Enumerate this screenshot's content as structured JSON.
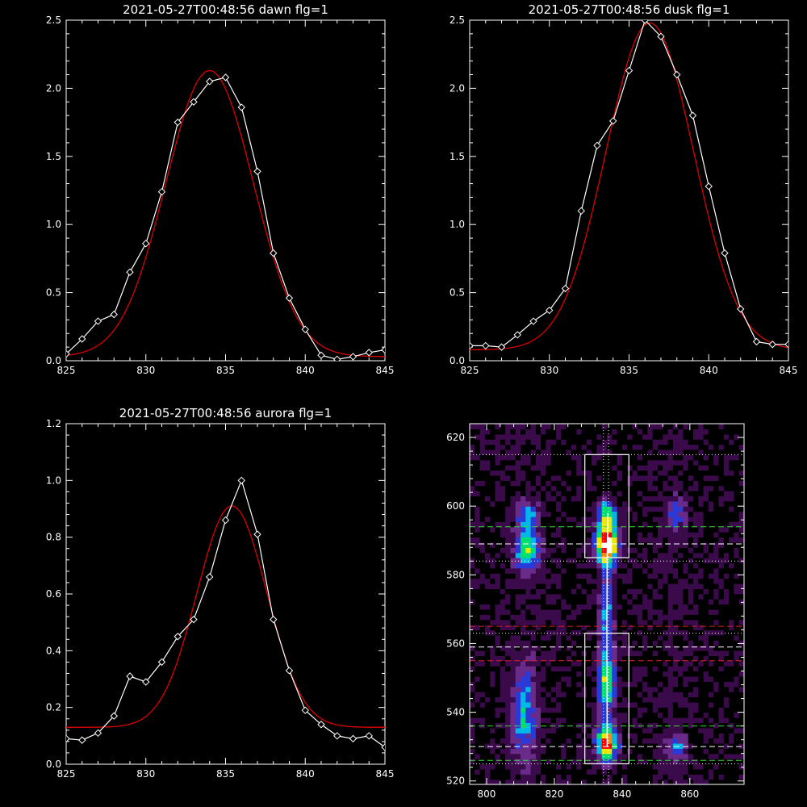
{
  "chart_data": [
    {
      "type": "line",
      "title": "2021-05-27T00:48:56 dawn flg=1",
      "xlim": [
        825,
        845
      ],
      "ylim": [
        0.0,
        2.5
      ],
      "xticks": [
        "825",
        "830",
        "835",
        "840",
        "845"
      ],
      "yticks": [
        "0.0",
        "0.5",
        "1.0",
        "1.5",
        "2.0",
        "2.5"
      ],
      "series": [
        {
          "role": "data",
          "color": "#ffffff",
          "marker": "diamond",
          "x": [
            825,
            826,
            827,
            828,
            829,
            830,
            831,
            832,
            833,
            834,
            835,
            836,
            837,
            838,
            839,
            840,
            841,
            842,
            843,
            844,
            845
          ],
          "y": [
            0.05,
            0.16,
            0.29,
            0.34,
            0.65,
            0.86,
            1.24,
            1.75,
            1.9,
            2.05,
            2.08,
            1.86,
            1.39,
            0.79,
            0.46,
            0.23,
            0.04,
            0.01,
            0.03,
            0.06,
            0.08
          ]
        },
        {
          "role": "fit",
          "color": "#dd0000",
          "gauss": {
            "amp": 2.1,
            "center": 834.0,
            "sigma": 2.75,
            "base": 0.03
          }
        }
      ]
    },
    {
      "type": "line",
      "title": "2021-05-27T00:48:56 dusk flg=1",
      "xlim": [
        825,
        845
      ],
      "ylim": [
        0.0,
        2.5
      ],
      "xticks": [
        "825",
        "830",
        "835",
        "840",
        "845"
      ],
      "yticks": [
        "0.0",
        "0.5",
        "1.0",
        "1.5",
        "2.0",
        "2.5"
      ],
      "series": [
        {
          "role": "data",
          "color": "#ffffff",
          "marker": "diamond",
          "x": [
            825,
            826,
            827,
            828,
            829,
            830,
            831,
            832,
            833,
            834,
            835,
            836,
            837,
            838,
            839,
            840,
            841,
            842,
            843,
            844,
            845
          ],
          "y": [
            0.11,
            0.11,
            0.1,
            0.19,
            0.29,
            0.37,
            0.53,
            1.1,
            1.58,
            1.76,
            2.13,
            2.5,
            2.38,
            2.1,
            1.8,
            1.28,
            0.79,
            0.38,
            0.14,
            0.12,
            0.12
          ]
        },
        {
          "role": "fit",
          "color": "#dd0000",
          "gauss": {
            "amp": 2.4,
            "center": 836.3,
            "sigma": 2.75,
            "base": 0.08
          }
        }
      ]
    },
    {
      "type": "line",
      "title": "2021-05-27T00:48:56 aurora flg=1",
      "xlim": [
        825,
        845
      ],
      "ylim": [
        0.0,
        1.2
      ],
      "xticks": [
        "825",
        "830",
        "835",
        "840",
        "845"
      ],
      "yticks": [
        "0.0",
        "0.2",
        "0.4",
        "0.6",
        "0.8",
        "1.0",
        "1.2"
      ],
      "series": [
        {
          "role": "data",
          "color": "#ffffff",
          "marker": "diamond",
          "x": [
            825,
            826,
            827,
            828,
            829,
            830,
            831,
            832,
            833,
            834,
            835,
            836,
            837,
            838,
            839,
            840,
            841,
            842,
            843,
            844,
            845
          ],
          "y": [
            0.09,
            0.085,
            0.11,
            0.17,
            0.31,
            0.29,
            0.36,
            0.45,
            0.51,
            0.66,
            0.86,
            1.0,
            0.81,
            0.51,
            0.33,
            0.19,
            0.14,
            0.1,
            0.09,
            0.1,
            0.06
          ]
        },
        {
          "role": "fit",
          "color": "#dd0000",
          "gauss": {
            "amp": 0.78,
            "center": 835.4,
            "sigma": 2.2,
            "base": 0.13
          }
        }
      ]
    },
    {
      "type": "heatmap",
      "title": "",
      "xlim": [
        795,
        876
      ],
      "ylim": [
        519,
        624
      ],
      "xticks": [
        "800",
        "820",
        "840",
        "860"
      ],
      "yticks": [
        "520",
        "540",
        "560",
        "580",
        "600",
        "620"
      ],
      "colormap": [
        "#000000",
        "#3a0a4a",
        "#6a2a8a",
        "#2a3ad8",
        "#00b8e8",
        "#00e070",
        "#e8e800",
        "#ff8800",
        "#ff0000",
        "#ffffff"
      ],
      "sources": [
        {
          "x": 835.5,
          "y": 589,
          "sx": 2.2,
          "sy": 4.0,
          "amp": 1.0
        },
        {
          "x": 835.5,
          "y": 531,
          "sx": 2.2,
          "sy": 3.5,
          "amp": 0.85
        },
        {
          "x": 835.5,
          "y": 548,
          "sx": 2.0,
          "sy": 7.0,
          "amp": 0.55
        },
        {
          "x": 835.5,
          "y": 598,
          "sx": 2.0,
          "sy": 3.0,
          "amp": 0.5
        },
        {
          "x": 835.5,
          "y": 570,
          "sx": 1.5,
          "sy": 10.0,
          "amp": 0.4
        },
        {
          "x": 812,
          "y": 588,
          "sx": 2.5,
          "sy": 4.5,
          "amp": 0.55
        },
        {
          "x": 811,
          "y": 540,
          "sx": 2.5,
          "sy": 9.0,
          "amp": 0.4
        },
        {
          "x": 812,
          "y": 598,
          "sx": 2.0,
          "sy": 2.5,
          "amp": 0.35
        },
        {
          "x": 856,
          "y": 530,
          "sx": 2.0,
          "sy": 2.5,
          "amp": 0.35
        },
        {
          "x": 856,
          "y": 598,
          "sx": 2.0,
          "sy": 3.0,
          "amp": 0.3
        }
      ],
      "boxes": [
        {
          "x0": 829,
          "x1": 842,
          "y0": 585,
          "y1": 615,
          "color": "#ffffff"
        },
        {
          "x0": 829,
          "x1": 842,
          "y0": 525,
          "y1": 563,
          "color": "#ffffff"
        }
      ],
      "hlines": [
        {
          "y": 615,
          "style": "dotted",
          "color": "#ffffff"
        },
        {
          "y": 594,
          "style": "dashed",
          "color": "#33dd33"
        },
        {
          "y": 589,
          "style": "dashed",
          "color": "#ffffff"
        },
        {
          "y": 584,
          "style": "dotted",
          "color": "#ffffff"
        },
        {
          "y": 565,
          "style": "dashed",
          "color": "#dd2222"
        },
        {
          "y": 563,
          "style": "dotted",
          "color": "#ffffff"
        },
        {
          "y": 559,
          "style": "dashed",
          "color": "#ffffff"
        },
        {
          "y": 555,
          "style": "dashed",
          "color": "#dd2222"
        },
        {
          "y": 536,
          "style": "dashed",
          "color": "#33dd33"
        },
        {
          "y": 530,
          "style": "dashed",
          "color": "#ffffff"
        },
        {
          "y": 526,
          "style": "dashed",
          "color": "#33dd33"
        },
        {
          "y": 525,
          "style": "dotted",
          "color": "#ffffff"
        }
      ],
      "vlines": [
        {
          "x": 834.5,
          "style": "dotted",
          "color": "#ffffff"
        },
        {
          "x": 836.0,
          "style": "dotted",
          "color": "#ffffff"
        }
      ],
      "trace": {
        "x": [
          835.8,
          835.6,
          835.5,
          835.6
        ],
        "y": [
          598,
          585,
          563,
          530
        ],
        "color": "#ffffff"
      }
    }
  ]
}
